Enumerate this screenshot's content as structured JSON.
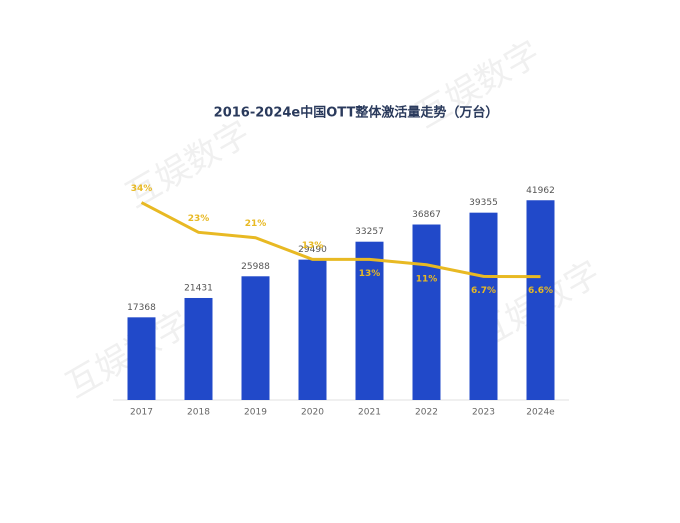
{
  "chart_data": {
    "type": "bar-line",
    "title": "2016-2024e中国OTT整体激活量走势（万台）",
    "watermark": "互娱数字",
    "categories": [
      "2017",
      "2018",
      "2019",
      "2020",
      "2021",
      "2022",
      "2023",
      "2024e"
    ],
    "ylim": [
      0,
      50000
    ],
    "y2lim": [
      -39,
      49
    ],
    "series": [
      {
        "type": "bar",
        "color": "#2149c9",
        "values": [
          17368,
          21431,
          25988,
          29490,
          33257,
          36867,
          39355,
          41962
        ]
      },
      {
        "type": "line",
        "axis": "y2",
        "color": "#e8b923",
        "values": [
          34,
          23,
          21,
          13,
          13,
          11,
          6.7,
          6.6
        ],
        "value_labels": [
          "34%",
          "23%",
          "21%",
          "13%",
          "13%",
          "11%",
          "6.7%",
          "6.6%"
        ]
      }
    ]
  }
}
